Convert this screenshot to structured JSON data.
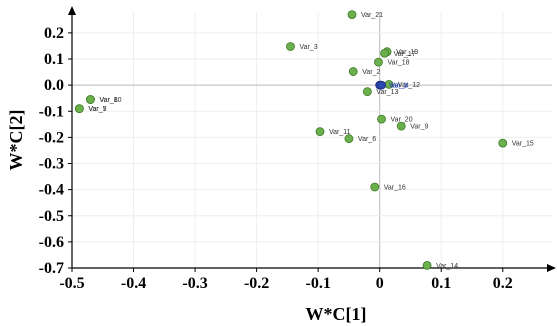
{
  "chart_data": {
    "type": "scatter",
    "xlabel": "W*C[1]",
    "ylabel": "W*C[2]",
    "xlim": [
      -0.5,
      0.28
    ],
    "ylim": [
      -0.7,
      0.28
    ],
    "xticks": [
      -0.5,
      -0.4,
      -0.3,
      -0.2,
      -0.1,
      0,
      0.1,
      0.2
    ],
    "xtick_labels": [
      "-0.5",
      "-0.4",
      "-0.3",
      "-0.2",
      "-0.1",
      "0",
      "0.1",
      "0.2"
    ],
    "yticks": [
      0.2,
      0.1,
      0,
      -0.1,
      -0.2,
      -0.3,
      -0.4,
      -0.5,
      -0.6,
      -0.7
    ],
    "ytick_labels": [
      "0.2",
      "0.1",
      "0.0",
      "-0.1",
      "-0.2",
      "-0.3",
      "-0.4",
      "-0.5",
      "-0.6",
      "-0.7"
    ],
    "grid": true,
    "point_color": "#6ab04c",
    "point_stroke": "#3f7a2a",
    "highlight_color": "#2a46b0",
    "points": [
      {
        "label": "Var_21",
        "x": -0.045,
        "y": 0.27
      },
      {
        "label": "Var_3",
        "x": -0.145,
        "y": 0.148
      },
      {
        "label": "Var_19",
        "x": 0.012,
        "y": 0.128
      },
      {
        "label": "Var_17",
        "x": 0.008,
        "y": 0.122
      },
      {
        "label": "Var_18",
        "x": -0.002,
        "y": 0.088
      },
      {
        "label": "Var_2",
        "x": -0.043,
        "y": 0.052
      },
      {
        "label": "Var_12",
        "x": 0.015,
        "y": 0.003
      },
      {
        "label": "Var_1",
        "x": 0.0,
        "y": 0.0,
        "highlight": true
      },
      {
        "label": "Var_4",
        "x": 0.003,
        "y": 0.0,
        "highlight": true
      },
      {
        "label": "Var_13",
        "x": -0.02,
        "y": -0.025
      },
      {
        "label": "Var_10",
        "x": -0.47,
        "y": -0.055
      },
      {
        "label": "Var_8",
        "x": -0.47,
        "y": -0.055
      },
      {
        "label": "Var_5",
        "x": -0.488,
        "y": -0.09
      },
      {
        "label": "Var_7",
        "x": -0.488,
        "y": -0.09
      },
      {
        "label": "Var_20",
        "x": 0.003,
        "y": -0.13
      },
      {
        "label": "Var_9",
        "x": 0.035,
        "y": -0.157
      },
      {
        "label": "Var_11",
        "x": -0.097,
        "y": -0.178
      },
      {
        "label": "Var_6",
        "x": -0.05,
        "y": -0.205
      },
      {
        "label": "Var_15",
        "x": 0.2,
        "y": -0.222
      },
      {
        "label": "Var_16",
        "x": -0.008,
        "y": -0.39
      },
      {
        "label": "Var_14",
        "x": 0.077,
        "y": -0.69
      }
    ]
  }
}
